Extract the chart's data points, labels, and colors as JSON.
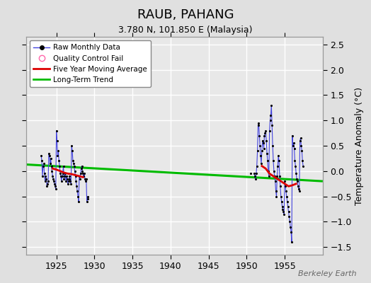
{
  "title": "RAUB, PAHANG",
  "subtitle": "3.780 N, 101.850 E (Malaysia)",
  "ylabel": "Temperature Anomaly (°C)",
  "watermark": "Berkeley Earth",
  "xlim": [
    1921,
    1960
  ],
  "ylim": [
    -1.65,
    2.65
  ],
  "yticks": [
    -1.5,
    -1.0,
    -0.5,
    0.0,
    0.5,
    1.0,
    1.5,
    2.0,
    2.5
  ],
  "xticks": [
    1925,
    1930,
    1935,
    1940,
    1945,
    1950,
    1955
  ],
  "plot_bg_color": "#e8e8e8",
  "fig_bg_color": "#e0e0e0",
  "grid_color": "#ffffff",
  "raw_line_color": "#4444dd",
  "raw_marker_color": "#000000",
  "ma_color": "#dd0000",
  "trend_color": "#00bb00",
  "raw_data_1": {
    "x": [
      1923.0,
      1923.083,
      1923.167,
      1923.25,
      1923.333,
      1923.417,
      1923.5,
      1923.583,
      1923.667,
      1923.75,
      1923.833,
      1923.917,
      1924.0,
      1924.083,
      1924.167,
      1924.25,
      1924.333,
      1924.417,
      1924.5,
      1924.583,
      1924.667,
      1924.75,
      1924.833,
      1924.917,
      1925.0,
      1925.083,
      1925.167,
      1925.25,
      1925.333,
      1925.417,
      1925.5,
      1925.583,
      1925.667,
      1925.75,
      1925.833,
      1925.917,
      1926.0,
      1926.083,
      1926.167,
      1926.25,
      1926.333,
      1926.417,
      1926.5,
      1926.583,
      1926.667,
      1926.75,
      1926.833,
      1926.917,
      1927.0,
      1927.083,
      1927.167,
      1927.25,
      1927.333,
      1927.417,
      1927.5,
      1927.583,
      1927.667,
      1927.75,
      1927.833,
      1927.917,
      1928.0,
      1928.083,
      1928.167,
      1928.25,
      1928.333,
      1928.417,
      1928.5,
      1928.583,
      1928.667,
      1928.75,
      1928.833,
      1928.917,
      1929.0,
      1929.083,
      1929.167
    ],
    "y": [
      0.3,
      0.2,
      -0.1,
      0.1,
      0.15,
      -0.05,
      -0.2,
      -0.1,
      -0.15,
      -0.3,
      -0.25,
      -0.2,
      0.35,
      0.3,
      0.15,
      0.25,
      0.1,
      0.0,
      -0.1,
      -0.15,
      -0.2,
      -0.25,
      -0.3,
      -0.35,
      0.8,
      0.6,
      0.3,
      0.4,
      0.2,
      0.1,
      -0.05,
      -0.1,
      -0.2,
      -0.1,
      -0.05,
      0.1,
      -0.15,
      -0.1,
      -0.05,
      -0.2,
      -0.1,
      -0.15,
      -0.25,
      -0.2,
      -0.15,
      -0.1,
      -0.2,
      -0.25,
      0.5,
      0.4,
      0.2,
      0.15,
      0.1,
      0.0,
      -0.1,
      -0.2,
      -0.3,
      -0.4,
      -0.5,
      -0.6,
      -0.1,
      -0.15,
      -0.05,
      0.05,
      0.1,
      0.0,
      -0.05,
      -0.1,
      -0.05,
      -0.15,
      -0.2,
      -0.15,
      -0.6,
      -0.55,
      -0.5
    ]
  },
  "raw_data_2": {
    "x": [
      1951.0,
      1951.083,
      1951.167,
      1951.25,
      1951.333,
      1951.417,
      1951.5,
      1951.583,
      1951.667,
      1951.75,
      1951.833,
      1951.917,
      1952.0,
      1952.083,
      1952.167,
      1952.25,
      1952.333,
      1952.417,
      1952.5,
      1952.583,
      1952.667,
      1952.75,
      1952.833,
      1952.917,
      1953.0,
      1953.083,
      1953.167,
      1953.25,
      1953.333,
      1953.417,
      1953.5,
      1953.583,
      1953.667,
      1953.75,
      1953.833,
      1953.917,
      1954.0,
      1954.083,
      1954.167,
      1954.25,
      1954.333,
      1954.417,
      1954.5,
      1954.583,
      1954.667,
      1954.75,
      1954.833,
      1954.917,
      1955.0,
      1955.083,
      1955.167,
      1955.25,
      1955.333,
      1955.417,
      1955.5,
      1955.583,
      1955.667,
      1955.75,
      1955.833,
      1955.917,
      1956.0,
      1956.083,
      1956.167,
      1956.25,
      1956.333,
      1956.417,
      1956.5,
      1956.583,
      1956.667,
      1956.75,
      1956.833,
      1956.917,
      1957.0,
      1957.083,
      1957.167,
      1957.25,
      1957.333,
      1957.417
    ],
    "y": [
      -0.05,
      -0.1,
      -0.15,
      -0.05,
      0.1,
      0.4,
      0.9,
      0.95,
      0.7,
      0.5,
      0.3,
      0.15,
      0.4,
      0.6,
      0.55,
      0.45,
      0.7,
      0.75,
      0.8,
      0.6,
      0.35,
      0.2,
      0.0,
      -0.1,
      0.8,
      1.0,
      1.1,
      1.3,
      0.9,
      0.5,
      0.2,
      0.0,
      -0.1,
      -0.2,
      -0.4,
      -0.5,
      -0.1,
      0.1,
      0.3,
      0.2,
      -0.1,
      -0.3,
      -0.5,
      -0.6,
      -0.7,
      -0.75,
      -0.8,
      -0.85,
      -0.2,
      -0.3,
      -0.4,
      -0.5,
      -0.6,
      -0.7,
      -0.8,
      -0.9,
      -1.0,
      -1.1,
      -1.2,
      -1.4,
      0.7,
      0.5,
      0.55,
      0.45,
      0.2,
      0.1,
      -0.05,
      -0.15,
      -0.2,
      -0.3,
      -0.35,
      -0.4,
      0.6,
      0.65,
      0.5,
      0.4,
      0.2,
      0.1
    ]
  },
  "moving_avg_1": {
    "x": [
      1924.5,
      1925.0,
      1925.5,
      1926.0,
      1926.5,
      1927.0,
      1927.5,
      1928.0,
      1928.5
    ],
    "y": [
      0.05,
      0.03,
      0.0,
      -0.03,
      -0.05,
      -0.06,
      -0.08,
      -0.1,
      -0.12
    ]
  },
  "moving_avg_2": {
    "x": [
      1952.0,
      1952.5,
      1953.0,
      1953.5,
      1954.0,
      1954.5,
      1955.0,
      1955.5,
      1956.0,
      1956.5
    ],
    "y": [
      0.1,
      0.05,
      -0.05,
      -0.1,
      -0.15,
      -0.2,
      -0.25,
      -0.3,
      -0.28,
      -0.25
    ]
  },
  "trend_x": [
    1921,
    1960
  ],
  "trend_y": [
    0.13,
    -0.2
  ],
  "single_point_x": [
    1950.5
  ],
  "single_point_y": [
    -0.05
  ]
}
